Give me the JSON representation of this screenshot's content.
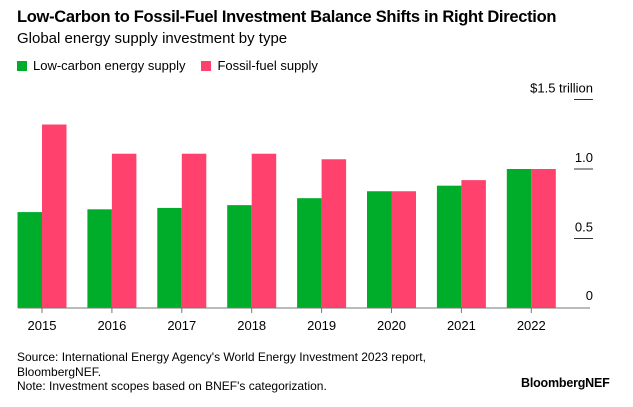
{
  "chart_data": {
    "type": "bar",
    "title": "Low-Carbon to Fossil-Fuel Investment Balance Shifts in Right Direction",
    "subtitle": "Global energy supply investment by type",
    "categories": [
      "2015",
      "2016",
      "2017",
      "2018",
      "2019",
      "2020",
      "2021",
      "2022"
    ],
    "series": [
      {
        "name": "Low-carbon energy supply",
        "color": "#00AD2B",
        "values": [
          0.69,
          0.71,
          0.72,
          0.74,
          0.79,
          0.84,
          0.88,
          1.0
        ]
      },
      {
        "name": "Fossil-fuel supply",
        "color": "#FF426D",
        "values": [
          1.32,
          1.11,
          1.11,
          1.11,
          1.07,
          0.84,
          0.92,
          1.0
        ]
      }
    ],
    "xlabel": "",
    "ylabel": "",
    "ylim": [
      0,
      1.5
    ],
    "yticks": [
      {
        "value": 0,
        "label": "0"
      },
      {
        "value": 0.5,
        "label": "0.5"
      },
      {
        "value": 1.0,
        "label": "1.0"
      },
      {
        "value": 1.5,
        "label": "$1.5 trillion"
      }
    ],
    "legend_position": "top-left",
    "y_axis_side": "right",
    "grid": false
  },
  "footer": {
    "source_line1": "Source: International Energy Agency's World Energy Investment 2023 report,",
    "source_line2": "BloombergNEF.",
    "note": "Note: Investment scopes based on BNEF's categorization.",
    "brand": "BloombergNEF"
  }
}
